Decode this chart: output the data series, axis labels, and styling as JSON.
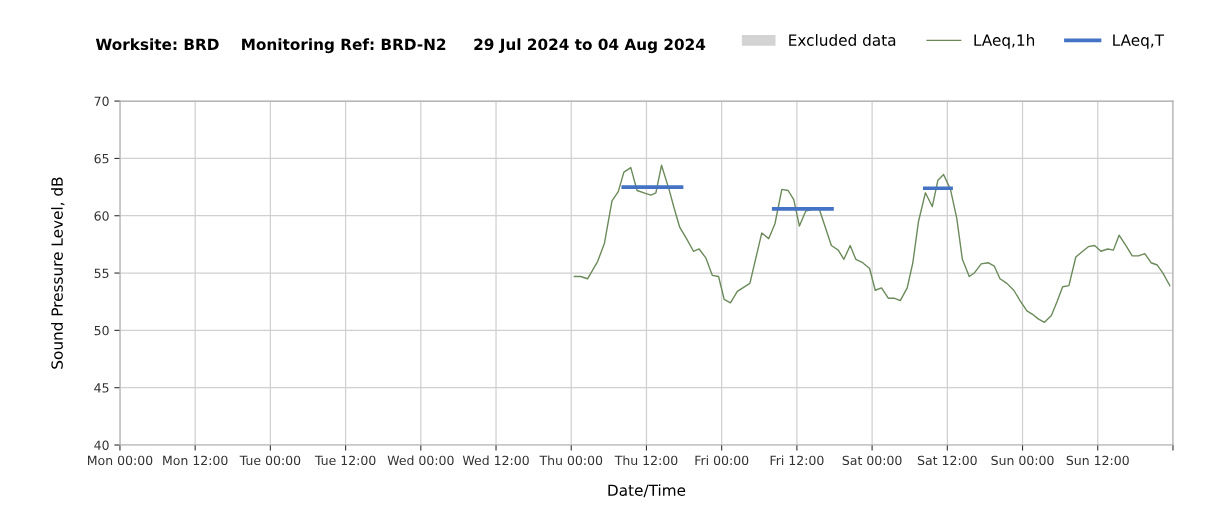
{
  "chart_data": {
    "type": "line",
    "title": "Worksite: BRD    Monitoring Ref: BRD-N2     29 Jul 2024 to 04 Aug 2024",
    "xlabel": "Date/Time",
    "ylabel": "Sound Pressure Level, dB",
    "xlim": [
      "2024-07-29T00:00",
      "2024-08-05T00:00"
    ],
    "ylim": [
      40,
      70
    ],
    "yticks": [
      40,
      45,
      50,
      55,
      60,
      65,
      70
    ],
    "xticks": [
      {
        "value": "2024-07-29T00:00",
        "label": "Mon 00:00"
      },
      {
        "value": "2024-07-29T12:00",
        "label": "Mon 12:00"
      },
      {
        "value": "2024-07-30T00:00",
        "label": "Tue 00:00"
      },
      {
        "value": "2024-07-30T12:00",
        "label": "Tue 12:00"
      },
      {
        "value": "2024-07-31T00:00",
        "label": "Wed 00:00"
      },
      {
        "value": "2024-07-31T12:00",
        "label": "Wed 12:00"
      },
      {
        "value": "2024-08-01T00:00",
        "label": "Thu 00:00"
      },
      {
        "value": "2024-08-01T12:00",
        "label": "Thu 12:00"
      },
      {
        "value": "2024-08-02T00:00",
        "label": "Fri 00:00"
      },
      {
        "value": "2024-08-02T12:00",
        "label": "Fri 12:00"
      },
      {
        "value": "2024-08-03T00:00",
        "label": "Sat 00:00"
      },
      {
        "value": "2024-08-03T12:00",
        "label": "Sat 12:00"
      },
      {
        "value": "2024-08-04T00:00",
        "label": "Sun 00:00"
      },
      {
        "value": "2024-08-04T12:00",
        "label": "Sun 12:00"
      },
      {
        "value": "2024-08-05T00:00",
        "label": null
      }
    ],
    "grid": true,
    "legend": "top right",
    "series": [
      {
        "name": "Excluded data",
        "type": "bar",
        "color": "#d3d3d3"
      },
      {
        "name": "LAeq,1h",
        "color": "#6b8a5a",
        "x": [
          "2024-08-01T00:30",
          "2024-08-01T01:30",
          "2024-08-01T02:36",
          "2024-08-01T04:12",
          "2024-08-01T05:18",
          "2024-08-01T06:30",
          "2024-08-01T07:30",
          "2024-08-01T08:24",
          "2024-08-01T09:30",
          "2024-08-01T10:30",
          "2024-08-01T11:36",
          "2024-08-01T12:42",
          "2024-08-01T13:30",
          "2024-08-01T14:24",
          "2024-08-01T15:36",
          "2024-08-01T16:24",
          "2024-08-01T17:18",
          "2024-08-01T18:30",
          "2024-08-01T19:30",
          "2024-08-01T20:24",
          "2024-08-01T21:30",
          "2024-08-01T22:30",
          "2024-08-01T23:30",
          "2024-08-02T00:24",
          "2024-08-02T01:24",
          "2024-08-02T02:30",
          "2024-08-02T04:30",
          "2024-08-02T06:24",
          "2024-08-02T07:30",
          "2024-08-02T08:30",
          "2024-08-02T09:36",
          "2024-08-02T10:36",
          "2024-08-02T11:30",
          "2024-08-02T12:24",
          "2024-08-02T13:24",
          "2024-08-02T15:30",
          "2024-08-02T17:30",
          "2024-08-02T18:36",
          "2024-08-02T19:30",
          "2024-08-02T20:30",
          "2024-08-02T21:24",
          "2024-08-02T22:30",
          "2024-08-02T23:36",
          "2024-08-03T00:30",
          "2024-08-03T01:30",
          "2024-08-03T02:36",
          "2024-08-03T03:36",
          "2024-08-03T04:30",
          "2024-08-03T05:36",
          "2024-08-03T06:30",
          "2024-08-03T07:24",
          "2024-08-03T08:30",
          "2024-08-03T09:36",
          "2024-08-03T10:30",
          "2024-08-03T11:24",
          "2024-08-03T12:30",
          "2024-08-03T13:30",
          "2024-08-03T14:24",
          "2024-08-03T15:30",
          "2024-08-03T16:18",
          "2024-08-03T17:24",
          "2024-08-03T18:30",
          "2024-08-03T19:30",
          "2024-08-03T20:24",
          "2024-08-03T21:30",
          "2024-08-03T22:36",
          "2024-08-03T23:36",
          "2024-08-04T00:42",
          "2024-08-04T01:36",
          "2024-08-04T02:30",
          "2024-08-04T03:30",
          "2024-08-04T04:36",
          "2024-08-04T05:30",
          "2024-08-04T06:24",
          "2024-08-04T07:24",
          "2024-08-04T08:30",
          "2024-08-04T09:36",
          "2024-08-04T10:30",
          "2024-08-04T11:30",
          "2024-08-04T12:30",
          "2024-08-04T13:36",
          "2024-08-04T14:30",
          "2024-08-04T15:24",
          "2024-08-04T16:30",
          "2024-08-04T17:30",
          "2024-08-04T18:30",
          "2024-08-04T19:30",
          "2024-08-04T20:30",
          "2024-08-04T21:30",
          "2024-08-04T22:24",
          "2024-08-04T23:30"
        ],
        "values": [
          54.7,
          54.7,
          54.5,
          56.0,
          57.6,
          61.3,
          62.1,
          63.8,
          64.2,
          62.2,
          62.0,
          61.8,
          62.0,
          64.4,
          62.3,
          60.7,
          59.0,
          57.9,
          56.9,
          57.1,
          56.3,
          54.8,
          54.7,
          52.7,
          52.4,
          53.4,
          54.1,
          58.5,
          58.0,
          59.3,
          62.3,
          62.2,
          61.4,
          59.1,
          60.4,
          60.7,
          57.4,
          57.0,
          56.2,
          57.4,
          56.2,
          55.9,
          55.4,
          53.5,
          53.7,
          52.8,
          52.8,
          52.6,
          53.7,
          55.9,
          59.5,
          62.0,
          60.8,
          63.1,
          63.6,
          62.3,
          59.8,
          56.2,
          54.7,
          55.0,
          55.8,
          55.9,
          55.6,
          54.5,
          54.1,
          53.5,
          52.6,
          51.7,
          51.4,
          51.0,
          50.7,
          51.3,
          52.5,
          53.8,
          53.9,
          56.4,
          56.9,
          57.3,
          57.4,
          56.9,
          57.1,
          57.0,
          58.3,
          57.4,
          56.5,
          56.5,
          56.7,
          55.9,
          55.7,
          55.0,
          53.9
        ]
      },
      {
        "name": "LAeq,T",
        "color": "#4472c4",
        "x": [
          "2024-08-01T08:18",
          "2024-08-01T17:36",
          "2024-08-02T00:00",
          "2024-08-02T08:18",
          "2024-08-02T17:36",
          "2024-08-03T00:00",
          "2024-08-03T08:24",
          "2024-08-03T12:36"
        ],
        "values": [
          62.5,
          62.5,
          null,
          60.6,
          60.6,
          null,
          62.4,
          62.4
        ]
      }
    ]
  }
}
